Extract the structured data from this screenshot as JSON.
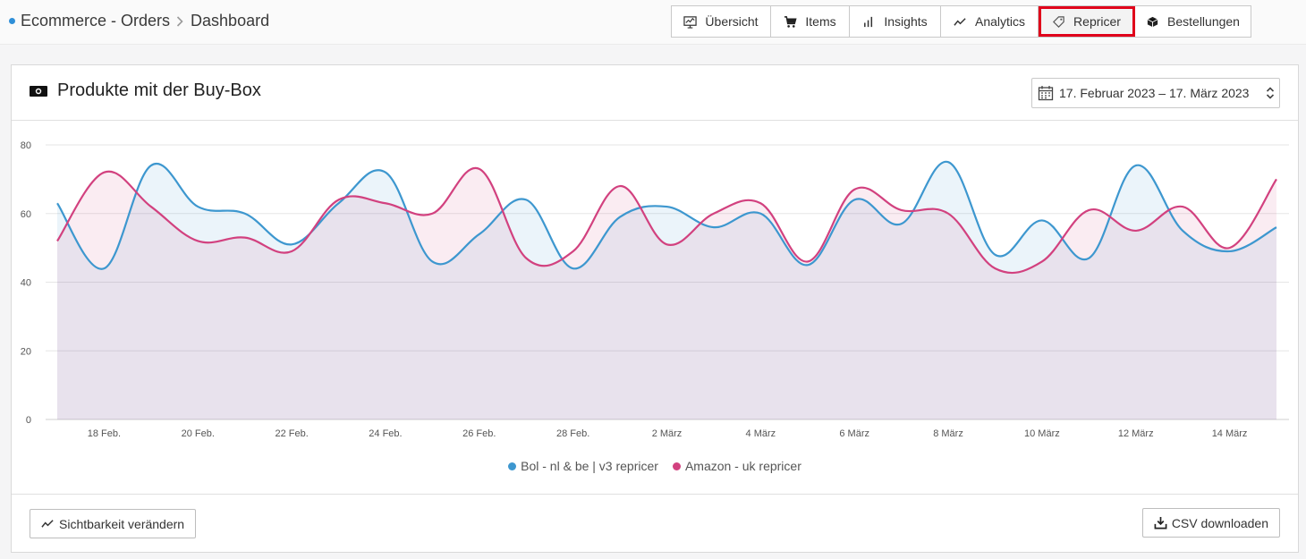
{
  "breadcrumb": {
    "items": [
      "Ecommerce - Orders",
      "Dashboard"
    ]
  },
  "tabs": [
    {
      "label": "Übersicht",
      "icon": "monitor-chart-icon",
      "active": false
    },
    {
      "label": "Items",
      "icon": "cart-icon",
      "active": false
    },
    {
      "label": "Insights",
      "icon": "bar-chart-icon",
      "active": false
    },
    {
      "label": "Analytics",
      "icon": "trend-line-icon",
      "active": false
    },
    {
      "label": "Repricer",
      "icon": "tag-icon",
      "active": true
    },
    {
      "label": "Bestellungen",
      "icon": "box-icon",
      "active": false
    }
  ],
  "card": {
    "title": "Produkte mit der Buy-Box",
    "title_icon": "money-icon",
    "date_range": "17. Februar 2023 – 17. März 2023"
  },
  "footer": {
    "visibility_button": "Sichtbarkeit verändern",
    "csv_button": "CSV downloaden"
  },
  "colors": {
    "series1": "#3d97cf",
    "series2": "#d2417f",
    "active_outline": "#e0001a"
  },
  "chart_data": {
    "type": "area",
    "ylim": [
      0,
      80
    ],
    "yticks": [
      0,
      20,
      40,
      60,
      80
    ],
    "x": [
      "17 Feb.",
      "18 Feb.",
      "19 Feb.",
      "20 Feb.",
      "21 Feb.",
      "22 Feb.",
      "23 Feb.",
      "24 Feb.",
      "25 Feb.",
      "26 Feb.",
      "27 Feb.",
      "28 Feb.",
      "1 März",
      "2 März",
      "3 März",
      "4 März",
      "5 März",
      "6 März",
      "7 März",
      "8 März",
      "9 März",
      "10 März",
      "11 März",
      "12 März",
      "13 März",
      "14 März",
      "15 März"
    ],
    "xtick_labels": [
      "18 Feb.",
      "20 Feb.",
      "22 Feb.",
      "24 Feb.",
      "26 Feb.",
      "28 Feb.",
      "2 März",
      "4 März",
      "6 März",
      "8 März",
      "10 März",
      "12 März",
      "14 März"
    ],
    "xtick_index": [
      1,
      3,
      5,
      7,
      9,
      11,
      13,
      15,
      17,
      19,
      21,
      23,
      25
    ],
    "grid": true,
    "legend_position": "bottom",
    "series": [
      {
        "name": "Bol - nl & be | v3 repricer",
        "color": "#3d97cf",
        "fill": "rgba(61,151,207,0.10)",
        "values": [
          63,
          44,
          74,
          62,
          60,
          51,
          63,
          72,
          46,
          54,
          64,
          44,
          59,
          62,
          56,
          60,
          45,
          64,
          57,
          75,
          48,
          58,
          47,
          74,
          55,
          49,
          56
        ]
      },
      {
        "name": "Amazon - uk repricer",
        "color": "#d2417f",
        "fill": "rgba(210,65,127,0.10)",
        "values": [
          52,
          72,
          62,
          52,
          53,
          49,
          64,
          63,
          60,
          73,
          47,
          49,
          68,
          51,
          60,
          63,
          46,
          67,
          61,
          60,
          44,
          46,
          61,
          55,
          62,
          50,
          70
        ]
      }
    ]
  }
}
